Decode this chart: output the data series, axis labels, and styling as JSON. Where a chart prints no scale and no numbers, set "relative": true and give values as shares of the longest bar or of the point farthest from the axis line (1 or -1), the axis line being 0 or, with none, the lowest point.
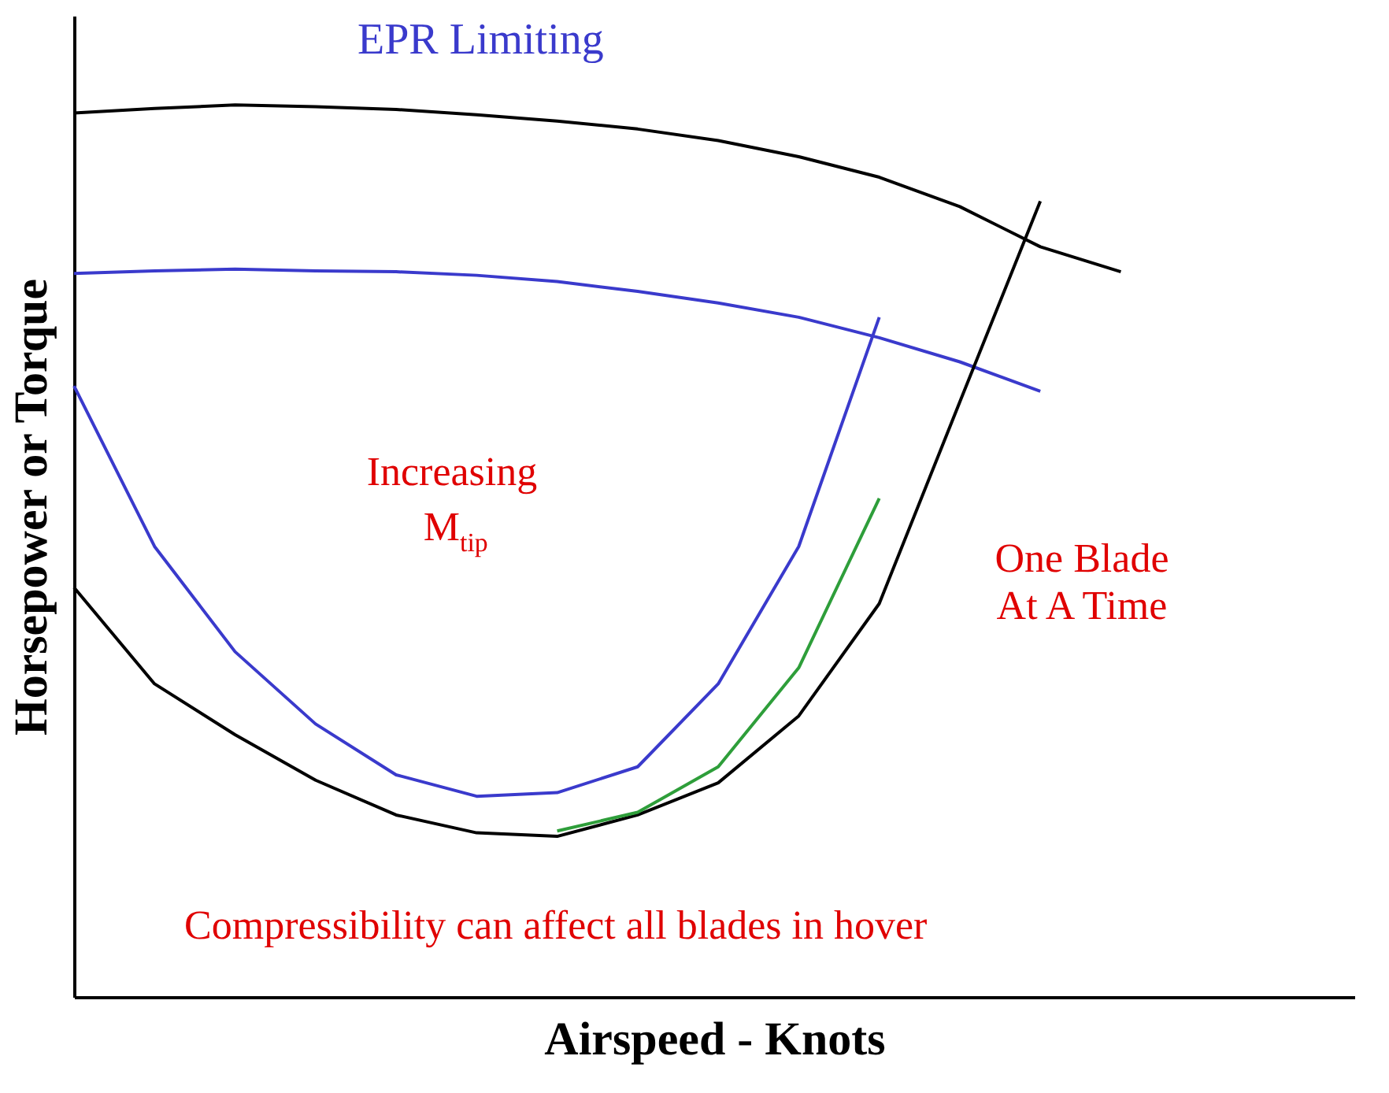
{
  "chart_data": {
    "type": "line",
    "relative": true,
    "xlabel": "Airspeed - Knots",
    "ylabel": "Horsepower or Torque",
    "categories": [
      null,
      null,
      null,
      null,
      null,
      null,
      null,
      null,
      null,
      null,
      null,
      null,
      null,
      null
    ],
    "series": [
      {
        "color": "#000000",
        "values": [
          0.991,
          0.996,
          1.0,
          0.998,
          0.995,
          0.989,
          0.982,
          0.973,
          0.96,
          0.942,
          0.919,
          0.886,
          0.841,
          0.813
        ]
      },
      {
        "color": "#3a3acc",
        "values": [
          0.811,
          0.814,
          0.816,
          0.814,
          0.813,
          0.809,
          0.802,
          0.791,
          0.778,
          0.762,
          0.739,
          0.712,
          0.679,
          null
        ]
      },
      {
        "color": "#3a3acc",
        "values": [
          0.685,
          0.505,
          0.387,
          0.306,
          0.249,
          0.225,
          0.229,
          0.258,
          0.351,
          0.505,
          0.762,
          null,
          null,
          null
        ]
      },
      {
        "color": "#000000",
        "values": [
          0.459,
          0.351,
          0.294,
          0.243,
          0.204,
          0.184,
          0.18,
          0.204,
          0.24,
          0.315,
          0.441,
          0.667,
          0.892,
          null
        ]
      },
      {
        "color": "#2e9e3a",
        "values": [
          null,
          null,
          null,
          null,
          null,
          null,
          0.186,
          0.207,
          0.258,
          0.369,
          0.559,
          null,
          null,
          null
        ]
      }
    ],
    "annotations": [
      "EPR Limiting",
      "Increasing M$_{tip}$",
      "One Blade\nAt A Time",
      "Compressibility can affect all blades in hover"
    ],
    "grid": false,
    "line_style": "solid",
    "marker": "none"
  }
}
